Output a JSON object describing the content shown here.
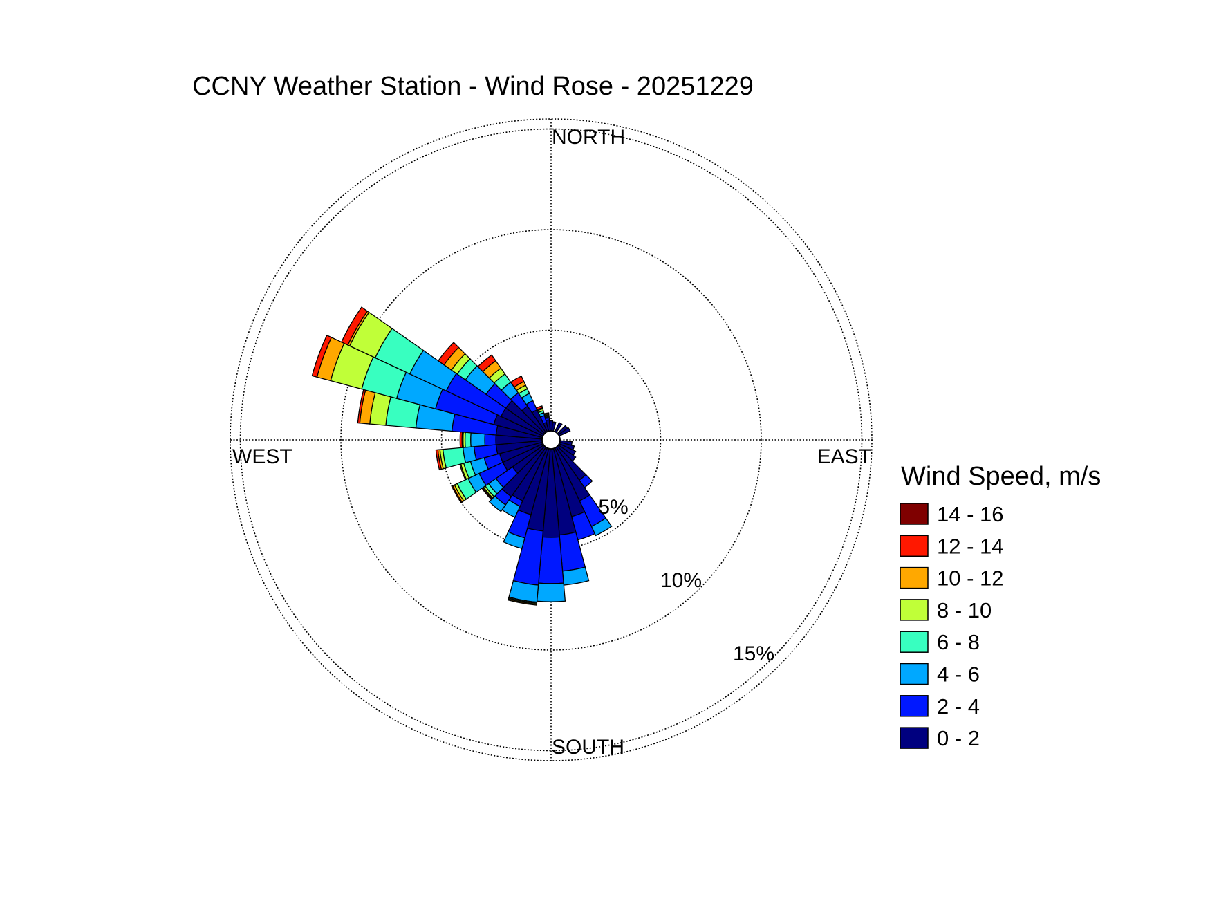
{
  "chart_data": {
    "type": "windrose",
    "title": "CCNY Weather Station - Wind Rose - 20251229",
    "directions": {
      "north": "NORTH",
      "east": "EAST",
      "south": "SOUTH",
      "west": "WEST"
    },
    "radial_ticks": [
      {
        "value": 5,
        "label": "5%"
      },
      {
        "value": 10,
        "label": "10%"
      },
      {
        "value": 15,
        "label": "15%"
      }
    ],
    "radial_max": 15.5,
    "legend": {
      "title": "Wind Speed, m/s",
      "placement": "right"
    },
    "speed_bins": [
      {
        "label": "0 - 2",
        "color": "#00007f"
      },
      {
        "label": "2 - 4",
        "color": "#0018ff"
      },
      {
        "label": "4 - 6",
        "color": "#00a8ff"
      },
      {
        "label": "6 - 8",
        "color": "#38ffc0"
      },
      {
        "label": "8 - 10",
        "color": "#c0ff38"
      },
      {
        "label": "10 - 12",
        "color": "#ffa800"
      },
      {
        "label": "12 - 14",
        "color": "#ff1800"
      },
      {
        "label": "14 - 16",
        "color": "#7f0000"
      }
    ],
    "sector_width_deg": 10,
    "sectors": [
      {
        "dir": 30,
        "values": [
          0.5
        ]
      },
      {
        "dir": 50,
        "values": [
          0.55
        ]
      },
      {
        "dir": 60,
        "values": [
          0.6
        ]
      },
      {
        "dir": 100,
        "values": [
          0.6
        ]
      },
      {
        "dir": 110,
        "values": [
          0.75
        ]
      },
      {
        "dir": 120,
        "values": [
          0.9
        ]
      },
      {
        "dir": 130,
        "values": [
          1.05
        ]
      },
      {
        "dir": 140,
        "values": [
          2.0,
          0.45
        ]
      },
      {
        "dir": 150,
        "values": [
          2.9,
          1.4,
          0.5
        ]
      },
      {
        "dir": 160,
        "values": [
          3.5,
          1.2
        ]
      },
      {
        "dir": 170,
        "values": [
          4.3,
          1.8,
          0.7
        ]
      },
      {
        "dir": 180,
        "values": [
          4.4,
          2.3,
          0.9
        ]
      },
      {
        "dir": 190,
        "values": [
          4.1,
          2.7,
          0.85,
          0.05,
          0.05,
          0.05
        ]
      },
      {
        "dir": 200,
        "values": [
          3.4,
          1.2,
          0.55
        ]
      },
      {
        "dir": 210,
        "values": [
          2.9,
          0.3,
          0.6
        ]
      },
      {
        "dir": 220,
        "values": [
          3.0,
          0.5,
          0.4
        ]
      },
      {
        "dir": 230,
        "values": [
          1.9,
          1.0,
          0.45,
          0.2,
          0.1,
          0.05,
          0.05
        ]
      },
      {
        "dir": 240,
        "values": [
          2.2,
          1.3,
          0.6,
          0.6,
          0.15,
          0.1,
          0.05
        ]
      },
      {
        "dir": 250,
        "values": [
          2.2,
          0.8,
          0.7,
          0.35,
          0.15,
          0.05
        ]
      },
      {
        "dir": 260,
        "values": [
          2.3,
          1.1,
          0.55,
          1.0,
          0.15,
          0.1,
          0.1
        ]
      },
      {
        "dir": 270,
        "values": [
          2.3,
          0.55,
          0.7,
          0.28,
          0.1,
          0.05,
          0.1
        ]
      },
      {
        "dir": 280,
        "values": [
          2.3,
          2.2,
          1.8,
          1.5,
          0.8,
          0.5,
          0.1
        ]
      },
      {
        "dir": 290,
        "values": [
          2.5,
          3.0,
          2.0,
          1.8,
          1.6,
          0.7,
          0.25
        ]
      },
      {
        "dir": 300,
        "values": [
          2.3,
          3.0,
          2.0,
          1.9,
          1.4,
          0.1,
          0.35
        ]
      },
      {
        "dir": 310,
        "values": [
          2.3,
          1.2,
          1.25,
          0.5,
          0.35,
          0.45,
          0.35
        ]
      },
      {
        "dir": 320,
        "values": [
          1.6,
          0.8,
          0.65,
          0.5,
          0.35,
          0.45,
          0.35
        ]
      },
      {
        "dir": 330,
        "values": [
          1.2,
          0.5,
          0.4,
          0.25,
          0.2,
          0.2,
          0.3
        ]
      },
      {
        "dir": 340,
        "values": [
          0.45,
          0.35,
          0.15,
          0.1,
          0.1,
          0.05,
          0.1
        ]
      },
      {
        "dir": 350,
        "values": [
          0.55,
          0.1,
          0.05,
          0.05,
          0.05,
          0.05,
          0.05
        ]
      },
      {
        "dir": 0,
        "values": [
          0.5
        ]
      },
      {
        "dir": 10,
        "values": [
          0.45
        ]
      }
    ]
  }
}
